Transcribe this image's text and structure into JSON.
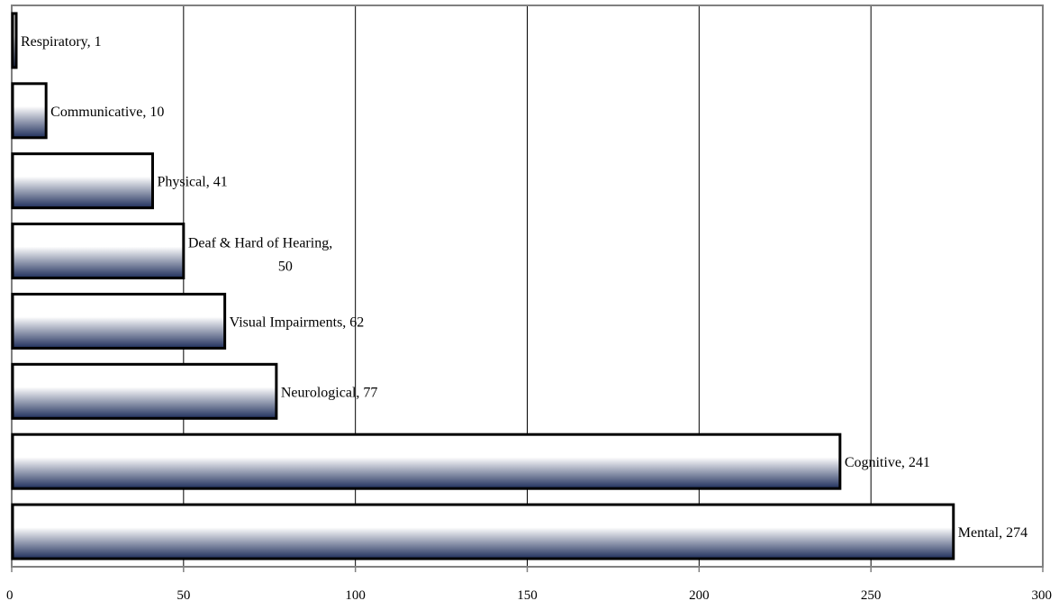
{
  "chart_data": {
    "type": "bar",
    "orientation": "horizontal",
    "categories": [
      "Respiratory",
      "Communicative",
      "Physical",
      "Deaf & Hard of Hearing",
      "Visual Impairments",
      "Neurological",
      "Cognitive",
      "Mental"
    ],
    "values": [
      1,
      10,
      41,
      50,
      62,
      77,
      241,
      274
    ],
    "data_labels": [
      [
        "Respiratory, 1"
      ],
      [
        "Communicative, 10"
      ],
      [
        "Physical, 41"
      ],
      [
        "Deaf & Hard of Hearing,",
        "50"
      ],
      [
        "Visual Impairments, 62"
      ],
      [
        "Neurological, 77"
      ],
      [
        "Cognitive, 241"
      ],
      [
        "Mental, 274"
      ]
    ],
    "x_ticks": [
      "0",
      "50",
      "100",
      "150",
      "200",
      "250",
      "300"
    ],
    "xlim": [
      0,
      300
    ],
    "grid": "vertical",
    "legend": "none",
    "title": "",
    "xlabel": "",
    "ylabel": ""
  },
  "colors": {
    "bar_dark": "#1f2f5c",
    "bar_light": "#ffffff",
    "bar_outline": "#000000",
    "grid": "#000000",
    "frame": "#808080"
  }
}
